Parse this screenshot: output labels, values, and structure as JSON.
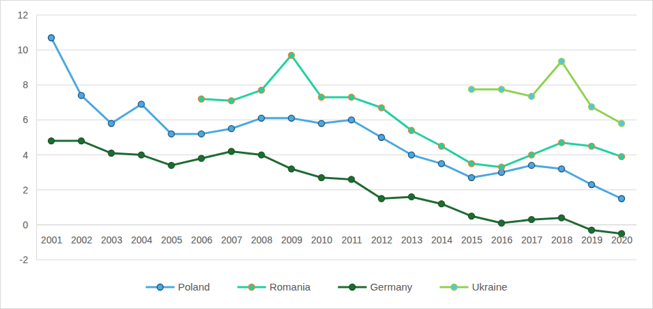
{
  "chart_data": {
    "type": "line",
    "categories": [
      "2001",
      "2002",
      "2003",
      "2004",
      "2005",
      "2006",
      "2007",
      "2008",
      "2009",
      "2010",
      "2011",
      "2012",
      "2013",
      "2014",
      "2015",
      "2016",
      "2017",
      "2018",
      "2019",
      "2020"
    ],
    "series": [
      {
        "name": "Poland",
        "color": "#4aa8e0",
        "values": [
          10.7,
          7.4,
          5.8,
          6.9,
          5.2,
          5.2,
          5.5,
          6.1,
          6.1,
          5.8,
          6.0,
          5.0,
          4.0,
          3.5,
          2.7,
          3.0,
          3.4,
          3.2,
          2.3,
          1.5
        ]
      },
      {
        "name": "Romania",
        "color": "#1fd1a0",
        "values": [
          null,
          null,
          null,
          null,
          null,
          7.2,
          7.1,
          7.7,
          9.7,
          7.3,
          7.3,
          6.7,
          5.4,
          4.5,
          3.5,
          3.3,
          4.0,
          4.7,
          4.5,
          3.9
        ]
      },
      {
        "name": "Germany",
        "color": "#1e6b34",
        "values": [
          4.8,
          4.8,
          4.1,
          4.0,
          3.4,
          3.8,
          4.2,
          4.0,
          3.2,
          2.7,
          2.6,
          1.5,
          1.6,
          1.2,
          0.5,
          0.1,
          0.3,
          0.4,
          -0.3,
          -0.5
        ]
      },
      {
        "name": "Ukraine",
        "color": "#8fd14f",
        "values": [
          null,
          null,
          null,
          null,
          null,
          null,
          null,
          null,
          null,
          null,
          null,
          null,
          null,
          null,
          7.75,
          7.75,
          7.35,
          9.35,
          6.75,
          5.8
        ]
      }
    ],
    "ylim": [
      -2,
      12
    ],
    "yticks": [
      -2,
      0,
      2,
      4,
      6,
      8,
      10,
      12
    ],
    "grid": true,
    "legend": "bottom",
    "marker": "circle"
  }
}
